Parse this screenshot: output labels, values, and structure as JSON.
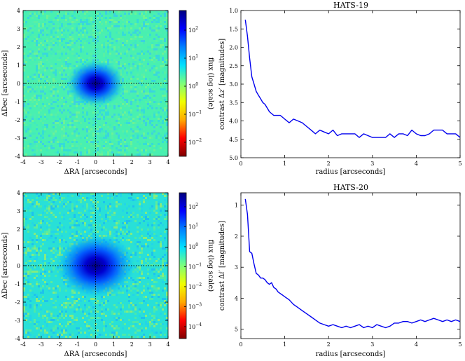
{
  "chart_data": [
    {
      "type": "heatmap",
      "description_label": "HATS-19 speckle image",
      "xlabel": "ΔRA [arcseconds]",
      "ylabel": "ΔDec [arcseconds]",
      "xlim": [
        -4,
        4
      ],
      "ylim": [
        -4,
        4
      ],
      "x_ticks": [
        "-4",
        "-3",
        "-2",
        "-1",
        "0",
        "1",
        "2",
        "3",
        "4"
      ],
      "y_ticks": [
        "-4",
        "-3",
        "-2",
        "-1",
        "0",
        "1",
        "2",
        "3",
        "4"
      ],
      "colorbar": {
        "label": "flux (log scale)",
        "range_log10": [
          -2.5,
          2.7
        ],
        "tick_base": "10",
        "tick_exponents": [
          "2",
          "1",
          "0",
          "−1",
          "−2"
        ],
        "colormap": [
          "#7f0000",
          "#ff0000",
          "#ffaa00",
          "#f0ff00",
          "#7dff7a",
          "#00e0ff",
          "#0080ff",
          "#0000ff",
          "#00007f"
        ]
      },
      "background_level_log10": 0,
      "peak_level_log10": 2.4,
      "psf_core_radius_arcsec": 0.8
    },
    {
      "type": "line",
      "title": "HATS-19",
      "xlabel": "radius [arcseconds]",
      "ylabel": "contrast Δz′ [magnitudes]",
      "ylabel_main": "contrast Δ",
      "ylabel_var": "z′",
      "ylabel_unit": " [magnitudes]",
      "xlim": [
        0,
        5
      ],
      "ylim": [
        1.0,
        5.0
      ],
      "y_inverted": true,
      "x_ticks": [
        "0",
        "1",
        "2",
        "3",
        "4",
        "5"
      ],
      "y_ticks": [
        "1.0",
        "1.5",
        "2.0",
        "2.5",
        "3.0",
        "3.5",
        "4.0",
        "4.5",
        "5.0"
      ],
      "x": [
        0.1,
        0.15,
        0.2,
        0.25,
        0.3,
        0.35,
        0.4,
        0.45,
        0.5,
        0.55,
        0.6,
        0.65,
        0.7,
        0.75,
        0.8,
        0.9,
        1.0,
        1.1,
        1.2,
        1.3,
        1.4,
        1.5,
        1.6,
        1.7,
        1.8,
        1.9,
        2.0,
        2.1,
        2.2,
        2.3,
        2.4,
        2.5,
        2.6,
        2.7,
        2.8,
        2.9,
        3.0,
        3.1,
        3.2,
        3.3,
        3.4,
        3.5,
        3.6,
        3.7,
        3.8,
        3.9,
        4.0,
        4.1,
        4.2,
        4.3,
        4.4,
        4.5,
        4.6,
        4.7,
        4.8,
        4.9,
        5.0
      ],
      "series": [
        {
          "name": "HATS-19",
          "color": "#0000ee",
          "values": [
            1.25,
            1.7,
            2.3,
            2.8,
            3.0,
            3.2,
            3.3,
            3.4,
            3.5,
            3.55,
            3.65,
            3.75,
            3.8,
            3.85,
            3.85,
            3.85,
            3.95,
            4.05,
            3.95,
            4.0,
            4.05,
            4.15,
            4.25,
            4.35,
            4.25,
            4.3,
            4.35,
            4.25,
            4.4,
            4.35,
            4.35,
            4.35,
            4.35,
            4.45,
            4.35,
            4.4,
            4.45,
            4.45,
            4.45,
            4.45,
            4.35,
            4.45,
            4.35,
            4.35,
            4.4,
            4.25,
            4.35,
            4.4,
            4.4,
            4.35,
            4.25,
            4.25,
            4.25,
            4.35,
            4.35,
            4.35,
            4.45
          ]
        }
      ]
    },
    {
      "type": "heatmap",
      "description_label": "HATS-20 speckle image",
      "xlabel": "ΔRA [arcseconds]",
      "ylabel": "ΔDec [arcseconds]",
      "xlim": [
        -4,
        4
      ],
      "ylim": [
        -4,
        4
      ],
      "x_ticks": [
        "-4",
        "-3",
        "-2",
        "-1",
        "0",
        "1",
        "2",
        "3",
        "4"
      ],
      "y_ticks": [
        "-4",
        "-3",
        "-2",
        "-1",
        "0",
        "1",
        "2",
        "3",
        "4"
      ],
      "colorbar": {
        "label": "flux (log scale)",
        "range_log10": [
          -4.6,
          2.7
        ],
        "tick_base": "10",
        "tick_exponents": [
          "2",
          "1",
          "0",
          "−1",
          "−2",
          "−3",
          "−4"
        ],
        "colormap": [
          "#7f0000",
          "#ff0000",
          "#ffaa00",
          "#f0ff00",
          "#7dff7a",
          "#00e0ff",
          "#0080ff",
          "#0000ff",
          "#00007f"
        ]
      },
      "background_level_log10": -1.0,
      "peak_level_log10": 2.4,
      "psf_core_radius_arcsec": 1.1
    },
    {
      "type": "line",
      "title": "HATS-20",
      "xlabel": "radius [arcseconds]",
      "ylabel": "contrast Δi′ [magnitudes]",
      "ylabel_main": "contrast Δ",
      "ylabel_var": "i′",
      "ylabel_unit": " [magnitudes]",
      "xlim": [
        0,
        5
      ],
      "ylim": [
        0.6,
        5.3
      ],
      "y_inverted": true,
      "x_ticks": [
        "0",
        "1",
        "2",
        "3",
        "4",
        "5"
      ],
      "y_ticks": [
        "1",
        "2",
        "3",
        "4",
        "5"
      ],
      "x": [
        0.1,
        0.15,
        0.2,
        0.25,
        0.3,
        0.35,
        0.4,
        0.45,
        0.5,
        0.55,
        0.6,
        0.65,
        0.7,
        0.75,
        0.8,
        0.85,
        0.9,
        0.95,
        1.0,
        1.1,
        1.2,
        1.3,
        1.4,
        1.5,
        1.6,
        1.7,
        1.8,
        1.9,
        2.0,
        2.1,
        2.2,
        2.3,
        2.4,
        2.5,
        2.6,
        2.7,
        2.8,
        2.9,
        3.0,
        3.1,
        3.2,
        3.3,
        3.4,
        3.5,
        3.6,
        3.7,
        3.8,
        3.9,
        4.0,
        4.1,
        4.2,
        4.3,
        4.4,
        4.5,
        4.6,
        4.7,
        4.8,
        4.9,
        5.0
      ],
      "series": [
        {
          "name": "HATS-20",
          "color": "#0000ee",
          "values": [
            0.8,
            1.3,
            2.5,
            2.55,
            2.9,
            3.2,
            3.25,
            3.35,
            3.35,
            3.4,
            3.5,
            3.55,
            3.5,
            3.65,
            3.7,
            3.8,
            3.85,
            3.9,
            3.95,
            4.05,
            4.2,
            4.3,
            4.4,
            4.5,
            4.6,
            4.7,
            4.8,
            4.85,
            4.9,
            4.85,
            4.9,
            4.95,
            4.9,
            4.95,
            4.9,
            4.85,
            4.95,
            4.9,
            4.95,
            4.85,
            4.9,
            4.95,
            4.9,
            4.8,
            4.8,
            4.75,
            4.75,
            4.8,
            4.75,
            4.7,
            4.75,
            4.7,
            4.65,
            4.7,
            4.75,
            4.7,
            4.75,
            4.7,
            4.75
          ]
        }
      ]
    }
  ]
}
